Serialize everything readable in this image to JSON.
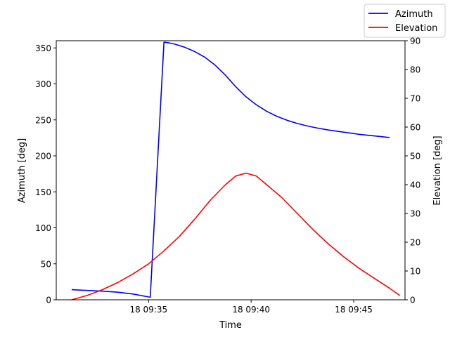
{
  "chart_data": {
    "type": "line",
    "xlabel": "Time",
    "ylabel_left": "Azimuth [deg]",
    "ylabel_right": "Elevation [deg]",
    "x_tick_labels": [
      "18 09:35",
      "18 09:40",
      "18 09:45"
    ],
    "x_ticks": [
      "09:35",
      "09:40",
      "09:45"
    ],
    "xlim": [
      "09:30:30",
      "09:47:30"
    ],
    "ylim_left": [
      0,
      360
    ],
    "ylim_right": [
      0,
      90
    ],
    "yticks_left": [
      0,
      50,
      100,
      150,
      200,
      250,
      300,
      350
    ],
    "yticks_right": [
      0,
      10,
      20,
      30,
      40,
      50,
      60,
      70,
      80,
      90
    ],
    "grid": false,
    "legend_position": "top-right (outside axes)",
    "series": [
      {
        "name": "Azimuth",
        "axis": "left",
        "color": "#0000ff",
        "points": [
          [
            "09:31:15",
            14.0
          ],
          [
            "09:32:00",
            13.0
          ],
          [
            "09:32:45",
            12.0
          ],
          [
            "09:33:30",
            10.5
          ],
          [
            "09:34:15",
            8.0
          ],
          [
            "09:35:05",
            3.5
          ],
          [
            "09:35:45",
            358.0
          ],
          [
            "09:36:00",
            357.0
          ],
          [
            "09:36:15",
            355.5
          ],
          [
            "09:36:45",
            351.0
          ],
          [
            "09:37:15",
            345.0
          ],
          [
            "09:37:45",
            337.0
          ],
          [
            "09:38:15",
            326.0
          ],
          [
            "09:38:45",
            312.0
          ],
          [
            "09:39:15",
            296.0
          ],
          [
            "09:39:45",
            282.0
          ],
          [
            "09:40:15",
            271.0
          ],
          [
            "09:40:45",
            262.0
          ],
          [
            "09:41:15",
            255.0
          ],
          [
            "09:41:45",
            249.5
          ],
          [
            "09:42:15",
            245.0
          ],
          [
            "09:42:45",
            241.5
          ],
          [
            "09:43:15",
            238.5
          ],
          [
            "09:43:45",
            236.0
          ],
          [
            "09:44:15",
            234.0
          ],
          [
            "09:44:45",
            232.0
          ],
          [
            "09:45:15",
            230.0
          ],
          [
            "09:45:45",
            228.5
          ],
          [
            "09:46:15",
            227.0
          ],
          [
            "09:46:45",
            225.5
          ]
        ]
      },
      {
        "name": "Elevation",
        "axis": "right",
        "color": "#ff0000",
        "points": [
          [
            "09:31:15",
            0.0
          ],
          [
            "09:32:00",
            1.5
          ],
          [
            "09:32:45",
            3.5
          ],
          [
            "09:33:30",
            6.0
          ],
          [
            "09:34:15",
            9.0
          ],
          [
            "09:35:00",
            12.5
          ],
          [
            "09:35:45",
            17.0
          ],
          [
            "09:36:30",
            22.0
          ],
          [
            "09:37:15",
            28.0
          ],
          [
            "09:38:00",
            34.5
          ],
          [
            "09:38:45",
            40.0
          ],
          [
            "09:39:15",
            43.0
          ],
          [
            "09:39:45",
            44.0
          ],
          [
            "09:40:15",
            43.0
          ],
          [
            "09:40:45",
            40.0
          ],
          [
            "09:41:30",
            35.5
          ],
          [
            "09:42:15",
            30.0
          ],
          [
            "09:43:00",
            24.5
          ],
          [
            "09:43:45",
            19.5
          ],
          [
            "09:44:30",
            15.0
          ],
          [
            "09:45:15",
            11.0
          ],
          [
            "09:46:00",
            7.5
          ],
          [
            "09:46:45",
            4.0
          ],
          [
            "09:47:15",
            1.5
          ]
        ]
      }
    ]
  }
}
